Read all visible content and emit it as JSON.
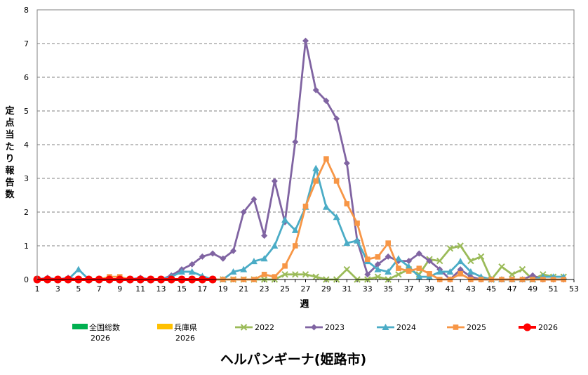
{
  "chart_data": {
    "type": "line",
    "title": "ヘルパンギーナ(姫路市)",
    "xlabel": "週",
    "ylabel": "定点当たり報告数",
    "ylim": [
      0,
      8
    ],
    "yticks": [
      0,
      1,
      2,
      3,
      4,
      5,
      6,
      7,
      8
    ],
    "xlim": [
      1,
      53
    ],
    "xticks": [
      1,
      3,
      5,
      7,
      9,
      11,
      13,
      15,
      17,
      19,
      21,
      23,
      25,
      27,
      29,
      31,
      33,
      35,
      37,
      39,
      41,
      43,
      45,
      47,
      49,
      51,
      53
    ],
    "grid": "horizontal dashed",
    "legend_position": "bottom",
    "legend": [
      {
        "label": "全国総数",
        "label2": "2026",
        "kind": "bar",
        "color": "#00b050"
      },
      {
        "label": "兵庫県",
        "label2": "2026",
        "kind": "bar",
        "color": "#ffc000"
      },
      {
        "label": "2022",
        "kind": "line",
        "color": "#9bbb59",
        "marker": "x"
      },
      {
        "label": "2023",
        "kind": "line",
        "color": "#8064a2",
        "marker": "diamond"
      },
      {
        "label": "2024",
        "kind": "line",
        "color": "#4bacc6",
        "marker": "triangle"
      },
      {
        "label": "2025",
        "kind": "line",
        "color": "#f79646",
        "marker": "square"
      },
      {
        "label": "2026",
        "kind": "line",
        "color": "#ff0000",
        "marker": "circle"
      }
    ],
    "series": [
      {
        "name": "2022",
        "color": "#9bbb59",
        "marker": "x",
        "start": 1,
        "values": [
          0,
          0,
          0,
          0,
          0,
          0,
          0,
          0,
          0,
          0,
          0,
          0,
          0,
          0,
          0,
          0,
          0,
          0,
          0,
          0,
          0,
          0,
          0,
          0,
          0.15,
          0.15,
          0.15,
          0.08,
          0,
          0,
          0.3,
          0,
          0,
          0.08,
          0,
          0.15,
          0.3,
          0.15,
          0.6,
          0.55,
          0.92,
          1.0,
          0.55,
          0.68,
          0,
          0.38,
          0.15,
          0.3,
          0,
          0.15,
          0.08,
          0.08
        ]
      },
      {
        "name": "2023",
        "color": "#8064a2",
        "marker": "diamond",
        "start": 1,
        "values": [
          0,
          0.05,
          0,
          0.05,
          0,
          0,
          0,
          0,
          0,
          0,
          0.05,
          0,
          0,
          0.12,
          0.3,
          0.45,
          0.68,
          0.77,
          0.62,
          0.85,
          2.0,
          2.38,
          1.3,
          2.92,
          1.7,
          4.08,
          7.08,
          5.62,
          5.3,
          4.77,
          3.45,
          1.15,
          0.15,
          0.45,
          0.68,
          0.55,
          0.55,
          0.77,
          0.55,
          0.3,
          0,
          0.3,
          0.08,
          0,
          0,
          0,
          0,
          0,
          0.12,
          0,
          0,
          0
        ]
      },
      {
        "name": "2024",
        "color": "#4bacc6",
        "marker": "triangle",
        "start": 1,
        "values": [
          0,
          0,
          0,
          0,
          0.3,
          0,
          0,
          0,
          0,
          0,
          0,
          0,
          0,
          0.08,
          0.23,
          0.23,
          0.1,
          0,
          0,
          0.23,
          0.3,
          0.54,
          0.62,
          1.0,
          1.77,
          1.46,
          2.15,
          3.3,
          2.15,
          1.85,
          1.08,
          1.15,
          0.54,
          0.3,
          0.23,
          0.62,
          0.38,
          0.08,
          0.08,
          0.23,
          0.23,
          0.54,
          0.23,
          0.08,
          0,
          0,
          0,
          0,
          0,
          0.08,
          0.08,
          0.08
        ]
      },
      {
        "name": "2025",
        "color": "#f79646",
        "marker": "square",
        "start": 1,
        "values": [
          0,
          0,
          0,
          0,
          0,
          0,
          0,
          0.08,
          0.08,
          0,
          0,
          0,
          0,
          0,
          0,
          0,
          0,
          0,
          0,
          0,
          0,
          0,
          0.15,
          0.08,
          0.4,
          1.0,
          2.17,
          2.92,
          3.58,
          2.92,
          2.25,
          1.67,
          0.6,
          0.67,
          1.08,
          0.33,
          0.25,
          0.33,
          0.17,
          0,
          0,
          0.17,
          0,
          0,
          0,
          0,
          0,
          0,
          0,
          0,
          0,
          0
        ]
      },
      {
        "name": "2026",
        "color": "#ff0000",
        "marker": "circle",
        "start": 1,
        "values": [
          0,
          0,
          0,
          0,
          0,
          0,
          0,
          0,
          0,
          0,
          0,
          0,
          0,
          0,
          0,
          0,
          0,
          0
        ]
      }
    ]
  }
}
